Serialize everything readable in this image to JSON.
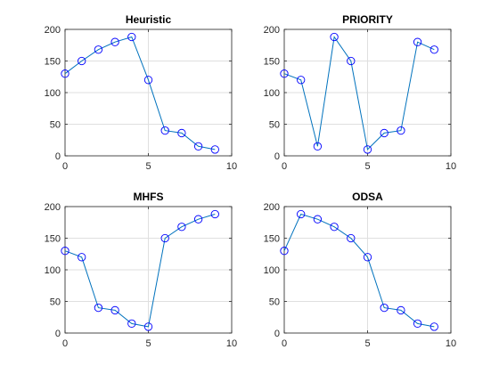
{
  "colors": {
    "line": "#0072bd",
    "marker": "#0000ff",
    "grid": "#dfdfdf",
    "axis": "#262626"
  },
  "chart_data": [
    {
      "type": "line",
      "title": "Heuristic",
      "x": [
        0,
        1,
        2,
        3,
        4,
        5,
        6,
        7,
        8,
        9
      ],
      "y": [
        130,
        150,
        168,
        180,
        188,
        120,
        40,
        36,
        15,
        10
      ],
      "xlim": [
        0,
        10
      ],
      "ylim": [
        0,
        200
      ],
      "xticks": [
        0,
        5,
        10
      ],
      "yticks": [
        0,
        50,
        100,
        150,
        200
      ],
      "grid": true,
      "marker": "circle"
    },
    {
      "type": "line",
      "title": "PRIORITY",
      "x": [
        0,
        1,
        2,
        3,
        4,
        5,
        6,
        7,
        8,
        9
      ],
      "y": [
        130,
        120,
        15,
        188,
        150,
        10,
        36,
        40,
        180,
        168
      ],
      "xlim": [
        0,
        10
      ],
      "ylim": [
        0,
        200
      ],
      "xticks": [
        0,
        5,
        10
      ],
      "yticks": [
        0,
        50,
        100,
        150,
        200
      ],
      "grid": true,
      "marker": "circle"
    },
    {
      "type": "line",
      "title": "MHFS",
      "x": [
        0,
        1,
        2,
        3,
        4,
        5,
        6,
        7,
        8,
        9
      ],
      "y": [
        130,
        120,
        40,
        36,
        15,
        10,
        150,
        168,
        180,
        188
      ],
      "xlim": [
        0,
        10
      ],
      "ylim": [
        0,
        200
      ],
      "xticks": [
        0,
        5,
        10
      ],
      "yticks": [
        0,
        50,
        100,
        150,
        200
      ],
      "grid": true,
      "marker": "circle"
    },
    {
      "type": "line",
      "title": "ODSA",
      "x": [
        0,
        1,
        2,
        3,
        4,
        5,
        6,
        7,
        8,
        9
      ],
      "y": [
        130,
        188,
        180,
        168,
        150,
        120,
        40,
        36,
        15,
        10
      ],
      "xlim": [
        0,
        10
      ],
      "ylim": [
        0,
        200
      ],
      "xticks": [
        0,
        5,
        10
      ],
      "yticks": [
        0,
        50,
        100,
        150,
        200
      ],
      "grid": true,
      "marker": "circle"
    }
  ]
}
